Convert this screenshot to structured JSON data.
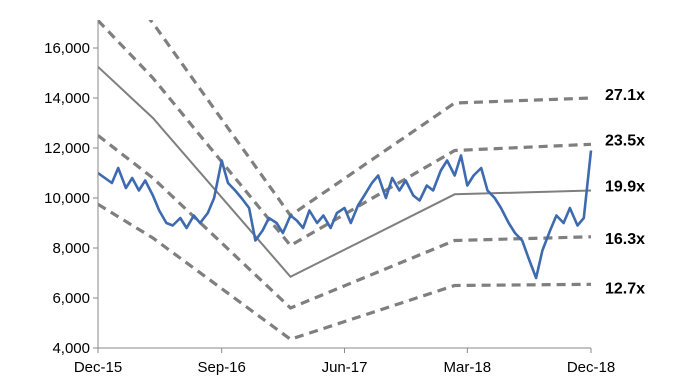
{
  "chart_data": {
    "type": "line",
    "title": "",
    "xlabel": "",
    "ylabel": "",
    "ylim": [
      4000,
      16000
    ],
    "yticks": [
      4000,
      6000,
      8000,
      10000,
      12000,
      14000,
      16000
    ],
    "ytick_labels": [
      "4,000",
      "6,000",
      "8,000",
      "10,000",
      "12,000",
      "14,000",
      "16,000"
    ],
    "xlim": [
      "2015-12",
      "2018-12"
    ],
    "xticks": [
      "2015-12",
      "2016-09",
      "2017-06",
      "2018-03",
      "2018-12"
    ],
    "xtick_labels": [
      "Dec-15",
      "Sep-16",
      "Jun-17",
      "Mar-18",
      "Dec-18"
    ],
    "grid": false,
    "colors": {
      "index": "#3E6BAF",
      "fair_band": "#7F7F7F"
    },
    "bands": [
      {
        "label": "27.1x",
        "style": "dashed",
        "x": [
          "2015-12",
          "2016-04",
          "2017-02",
          "2018-02",
          "2018-12"
        ],
        "y": [
          19600,
          17000,
          9300,
          13800,
          14000
        ]
      },
      {
        "label": "23.5x",
        "style": "dashed",
        "x": [
          "2015-12",
          "2016-04",
          "2017-02",
          "2018-02",
          "2018-12"
        ],
        "y": [
          17100,
          14800,
          8100,
          11900,
          12150
        ]
      },
      {
        "label": "19.9x",
        "style": "solid",
        "x": [
          "2015-12",
          "2016-04",
          "2017-02",
          "2018-02",
          "2018-12"
        ],
        "y": [
          15250,
          13200,
          6850,
          10150,
          10300
        ]
      },
      {
        "label": "16.3x",
        "style": "dashed",
        "x": [
          "2015-12",
          "2016-04",
          "2017-02",
          "2018-02",
          "2018-12"
        ],
        "y": [
          12500,
          10800,
          5600,
          8300,
          8450
        ]
      },
      {
        "label": "12.7x",
        "style": "dashed",
        "x": [
          "2015-12",
          "2016-04",
          "2017-02",
          "2018-02",
          "2018-12"
        ],
        "y": [
          9750,
          8400,
          4350,
          6500,
          6550
        ]
      }
    ],
    "series": [
      {
        "style": "line",
        "x": [
          "2015-12-01",
          "2016-01-01",
          "2016-01-15",
          "2016-02-01",
          "2016-02-15",
          "2016-03-01",
          "2016-03-15",
          "2016-04-01",
          "2016-04-15",
          "2016-05-01",
          "2016-05-15",
          "2016-06-01",
          "2016-06-15",
          "2016-07-01",
          "2016-07-15",
          "2016-08-01",
          "2016-08-15",
          "2016-09-01",
          "2016-09-15",
          "2016-10-01",
          "2016-10-15",
          "2016-11-01",
          "2016-11-15",
          "2016-12-01",
          "2016-12-15",
          "2017-01-01",
          "2017-01-15",
          "2017-02-01",
          "2017-02-15",
          "2017-03-01",
          "2017-03-15",
          "2017-04-01",
          "2017-04-15",
          "2017-05-01",
          "2017-05-15",
          "2017-06-01",
          "2017-06-15",
          "2017-07-01",
          "2017-07-15",
          "2017-08-01",
          "2017-08-15",
          "2017-09-01",
          "2017-09-15",
          "2017-10-01",
          "2017-10-15",
          "2017-11-01",
          "2017-11-15",
          "2017-12-01",
          "2017-12-15",
          "2018-01-01",
          "2018-01-15",
          "2018-02-01",
          "2018-02-15",
          "2018-03-01",
          "2018-03-15",
          "2018-04-01",
          "2018-04-15",
          "2018-05-01",
          "2018-05-15",
          "2018-06-01",
          "2018-06-15",
          "2018-07-01",
          "2018-07-15",
          "2018-08-01",
          "2018-08-15",
          "2018-09-01",
          "2018-09-15",
          "2018-10-01",
          "2018-10-15",
          "2018-11-01",
          "2018-11-15",
          "2018-12-01"
        ],
        "y": [
          11000,
          10600,
          11200,
          10400,
          10800,
          10300,
          10700,
          10100,
          9500,
          9000,
          8900,
          9200,
          8800,
          9300,
          9000,
          9400,
          10000,
          11500,
          10600,
          10300,
          10000,
          9600,
          8300,
          8700,
          9200,
          9000,
          8600,
          9300,
          9100,
          8800,
          9500,
          9000,
          9300,
          8800,
          9400,
          9600,
          9000,
          9700,
          10100,
          10600,
          10900,
          10000,
          10800,
          10300,
          10700,
          10100,
          9900,
          10500,
          10300,
          11100,
          11500,
          10900,
          11700,
          10500,
          10900,
          11200,
          10300,
          10000,
          9600,
          9000,
          8600,
          8300,
          7600,
          6800,
          7900,
          8700,
          9300,
          9000,
          9600,
          8900,
          9200,
          11900
        ]
      }
    ]
  }
}
